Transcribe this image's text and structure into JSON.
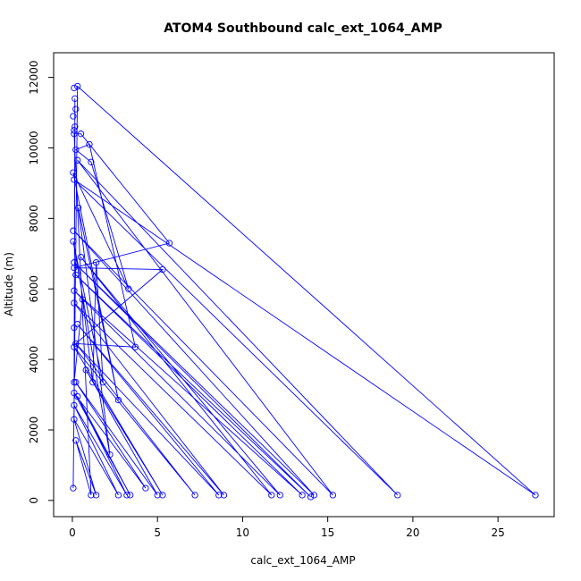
{
  "chart_data": {
    "type": "line",
    "title": "ATOM4 Southbound calc_ext_1064_AMP",
    "xlabel": "calc_ext_1064_AMP",
    "ylabel": "Altitude (m)",
    "xlim": [
      -1.1,
      28.3
    ],
    "ylim": [
      -460,
      12700
    ],
    "xticks": [
      0,
      5,
      10,
      15,
      20,
      25
    ],
    "yticks": [
      0,
      2000,
      4000,
      6000,
      8000,
      10000,
      12000
    ],
    "grid": false,
    "series": [
      {
        "color": "#0000ff",
        "marker": "open-circle",
        "points": [
          [
            0.05,
            350
          ],
          [
            0.3,
            11750
          ],
          [
            0.1,
            10400
          ],
          [
            0.5,
            10400
          ],
          [
            1.0,
            10100
          ],
          [
            0.2,
            9950
          ],
          [
            1.1,
            9600
          ],
          [
            0.05,
            9300
          ],
          [
            0.3,
            9650
          ],
          [
            0.1,
            9100
          ],
          [
            0.35,
            8300
          ],
          [
            0.05,
            7650
          ],
          [
            0.05,
            7350
          ],
          [
            5.7,
            7300
          ],
          [
            0.5,
            6900
          ],
          [
            0.1,
            6750
          ],
          [
            1.4,
            6750
          ],
          [
            5.3,
            6550
          ],
          [
            0.1,
            6600
          ],
          [
            0.2,
            6400
          ],
          [
            3.3,
            6000
          ],
          [
            0.1,
            5950
          ],
          [
            0.6,
            5700
          ],
          [
            0.1,
            5600
          ],
          [
            0.3,
            5000
          ],
          [
            0.1,
            4900
          ],
          [
            0.2,
            4450
          ],
          [
            3.7,
            4350
          ],
          [
            0.1,
            4350
          ],
          [
            0.8,
            3700
          ],
          [
            1.2,
            3350
          ],
          [
            1.8,
            3350
          ],
          [
            0.2,
            3350
          ],
          [
            0.1,
            3050
          ],
          [
            0.3,
            2950
          ],
          [
            0.1,
            2700
          ],
          [
            2.7,
            2850
          ],
          [
            0.1,
            2300
          ],
          [
            2.2,
            1300
          ],
          [
            0.2,
            1700
          ],
          [
            1.1,
            150
          ],
          [
            1.4,
            150
          ],
          [
            2.7,
            150
          ],
          [
            3.2,
            150
          ],
          [
            3.4,
            150
          ],
          [
            4.3,
            350
          ],
          [
            5.0,
            150
          ],
          [
            5.3,
            150
          ],
          [
            7.2,
            150
          ],
          [
            8.6,
            150
          ],
          [
            8.9,
            150
          ],
          [
            11.7,
            150
          ],
          [
            12.2,
            150
          ],
          [
            13.5,
            150
          ],
          [
            14.0,
            100
          ],
          [
            14.2,
            150
          ],
          [
            15.3,
            150
          ],
          [
            19.1,
            150
          ],
          [
            27.2,
            150
          ],
          [
            0.1,
            3350
          ],
          [
            0.1,
            11700
          ],
          [
            0.15,
            11400
          ],
          [
            0.2,
            11100
          ],
          [
            0.05,
            10900
          ],
          [
            0.15,
            10600
          ],
          [
            0.1,
            10500
          ]
        ],
        "path": [
          [
            0.05,
            350
          ],
          [
            0.3,
            11750
          ],
          [
            27.2,
            150
          ],
          [
            0.1,
            9100
          ],
          [
            19.1,
            150
          ],
          [
            0.3,
            9650
          ],
          [
            15.3,
            150
          ],
          [
            0.1,
            7650
          ],
          [
            14.2,
            150
          ],
          [
            0.1,
            6750
          ],
          [
            14.0,
            100
          ],
          [
            0.2,
            6400
          ],
          [
            13.5,
            150
          ],
          [
            0.1,
            5950
          ],
          [
            12.2,
            150
          ],
          [
            0.5,
            6900
          ],
          [
            11.7,
            150
          ],
          [
            0.1,
            5600
          ],
          [
            8.9,
            150
          ],
          [
            0.3,
            5000
          ],
          [
            8.6,
            150
          ],
          [
            0.2,
            4450
          ],
          [
            7.2,
            150
          ],
          [
            0.1,
            4350
          ],
          [
            5.3,
            150
          ],
          [
            0.8,
            3700
          ],
          [
            5.0,
            150
          ],
          [
            0.2,
            3350
          ],
          [
            4.3,
            350
          ],
          [
            0.1,
            3050
          ],
          [
            3.4,
            150
          ],
          [
            0.3,
            2950
          ],
          [
            3.2,
            150
          ],
          [
            0.1,
            2700
          ],
          [
            2.7,
            150
          ],
          [
            0.1,
            2300
          ],
          [
            1.4,
            150
          ],
          [
            0.2,
            1700
          ],
          [
            1.1,
            150
          ],
          [
            0.1,
            10400
          ],
          [
            0.5,
            10400
          ],
          [
            5.7,
            7300
          ],
          [
            0.1,
            6600
          ],
          [
            5.3,
            6550
          ],
          [
            0.2,
            4450
          ],
          [
            3.7,
            4350
          ],
          [
            1.0,
            10100
          ],
          [
            0.2,
            9950
          ],
          [
            1.1,
            9600
          ],
          [
            3.3,
            6000
          ],
          [
            0.05,
            9300
          ],
          [
            2.7,
            2850
          ],
          [
            0.35,
            8300
          ],
          [
            2.2,
            1300
          ],
          [
            0.05,
            7350
          ],
          [
            1.8,
            3350
          ],
          [
            1.4,
            6750
          ],
          [
            1.2,
            3350
          ],
          [
            0.6,
            5700
          ],
          [
            0.1,
            3350
          ],
          [
            0.15,
            11400
          ],
          [
            0.1,
            2300
          ]
        ]
      }
    ]
  }
}
